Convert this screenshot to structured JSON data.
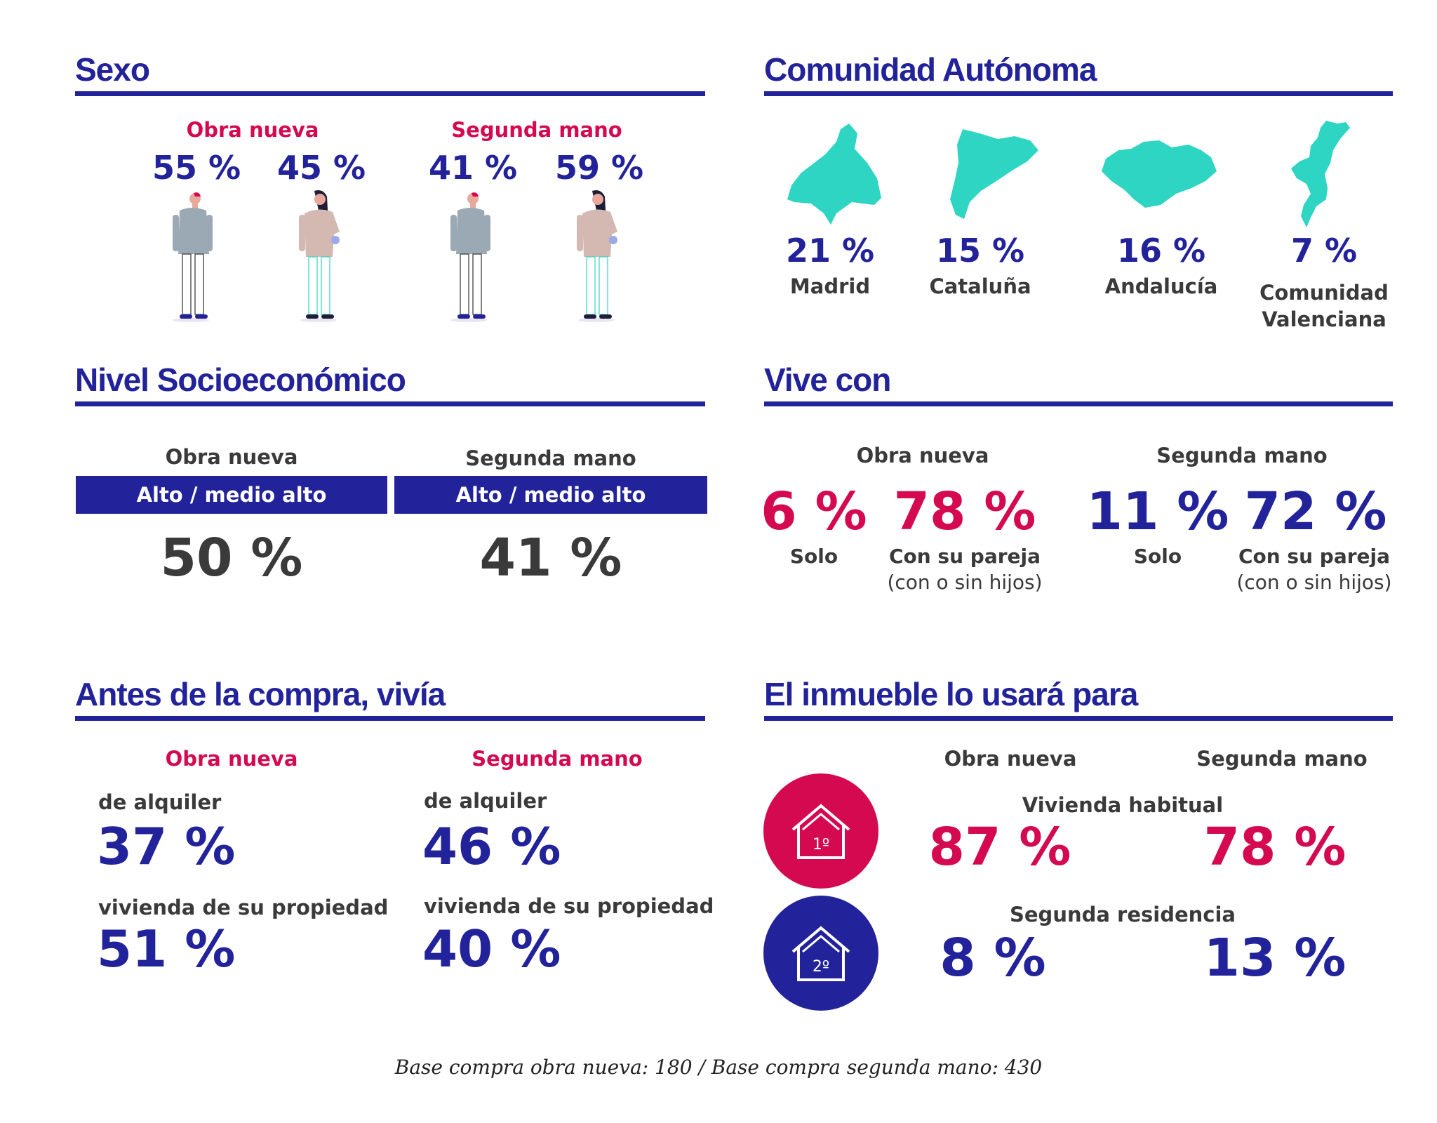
{
  "sexo": {
    "title": "Sexo",
    "obra_nueva_label": "Obra nueva",
    "segunda_mano_label": "Segunda mano",
    "obra_nueva": {
      "hombres": "55 %",
      "mujeres": "45 %"
    },
    "segunda_mano": {
      "hombres": "41 %",
      "mujeres": "59 %"
    },
    "colors": {
      "male_top": "#9aa9b3",
      "female_top": "#d4b9b2",
      "accent": "#d4094f"
    }
  },
  "comunidad": {
    "title": "Comunidad Autónoma",
    "map_color": "#2ed5c2",
    "regions": [
      {
        "pct": "21 %",
        "name": "Madrid",
        "icon": "madrid-map-icon"
      },
      {
        "pct": "15 %",
        "name": "Cataluña",
        "icon": "cataluna-map-icon"
      },
      {
        "pct": "16 %",
        "name": "Andalucía",
        "icon": "andalucia-map-icon"
      },
      {
        "pct": "7 %",
        "name_line1": "Comunidad",
        "name_line2": "Valenciana",
        "icon": "valencia-map-icon"
      }
    ]
  },
  "nivel": {
    "title": "Nivel Socioeconómico",
    "obra_nueva_label": "Obra nueva",
    "segunda_mano_label": "Segunda mano",
    "bar_label_1": "Alto / medio alto",
    "bar_label_2": "Alto / medio alto",
    "obra_nueva_pct": "50 %",
    "segunda_mano_pct": "41 %"
  },
  "vive": {
    "title": "Vive con",
    "obra_nueva_label": "Obra nueva",
    "segunda_mano_label": "Segunda mano",
    "on_solo": "6 %",
    "on_pareja": "78 %",
    "sm_solo": "11 %",
    "sm_pareja": "72 %",
    "solo_label": "Solo",
    "pareja_line1": "Con su pareja",
    "pareja_line2": "(con o sin hijos)"
  },
  "antes": {
    "title": "Antes de la compra, vivía",
    "obra_nueva_label": "Obra nueva",
    "segunda_mano_label": "Segunda mano",
    "alquiler_label": "de alquiler",
    "propiedad_label": "vivienda de su propiedad",
    "on_alquiler": "37 %",
    "on_propiedad": "51 %",
    "sm_alquiler": "46 %",
    "sm_propiedad": "40 %"
  },
  "inmueble": {
    "title": "El inmueble lo usará para",
    "obra_nueva_label": "Obra nueva",
    "segunda_mano_label": "Segunda mano",
    "habitual_label": "Vivienda habitual",
    "segunda_label": "Segunda residencia",
    "icon1_text": "1º",
    "icon2_text": "2º",
    "on_habitual": "87 %",
    "sm_habitual": "78 %",
    "on_segunda": "8 %",
    "sm_segunda": "13 %",
    "colors": {
      "habitual": "#d4094f",
      "segunda": "#22229a"
    }
  },
  "footer": "Base compra obra nueva: 180 / Base compra segunda mano: 430"
}
